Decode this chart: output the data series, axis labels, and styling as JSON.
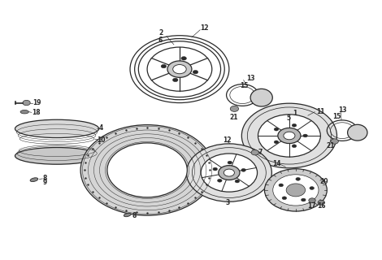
{
  "bg_color": "#ffffff",
  "line_color": "#2a2a2a",
  "figsize": [
    4.7,
    3.2
  ],
  "dpi": 100
}
